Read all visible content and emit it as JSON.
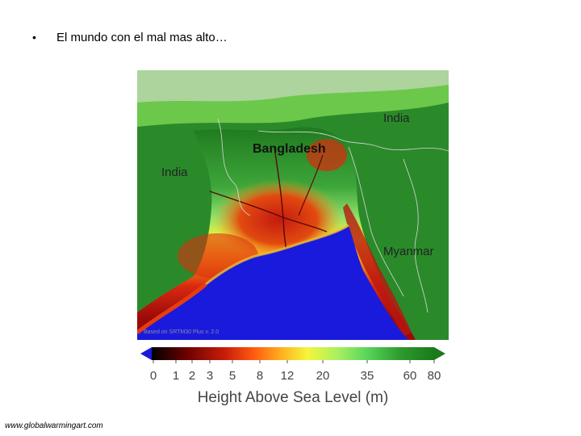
{
  "slide": {
    "bullet": "•",
    "title": "El mundo con el mal mas alto…"
  },
  "map": {
    "labels": {
      "india_east": "India",
      "bangladesh": "Bangladesh",
      "india_west": "India",
      "myanmar": "Myanmar"
    },
    "watermark": "Based on SRTM30 Plus v. 2.0",
    "colors": {
      "sea": "#1a1adc",
      "highland": "#2e8b2e",
      "lowland_red": "#c81e0a",
      "yellow": "#f2f23a",
      "light_green": "#7ddc5a"
    }
  },
  "legend": {
    "ticks": [
      "0",
      "1",
      "2",
      "3",
      "5",
      "8",
      "12",
      "20",
      "35",
      "60",
      "80"
    ],
    "title": "Height Above Sea Level (m)"
  },
  "credit": "www.globalwarmingart.com"
}
